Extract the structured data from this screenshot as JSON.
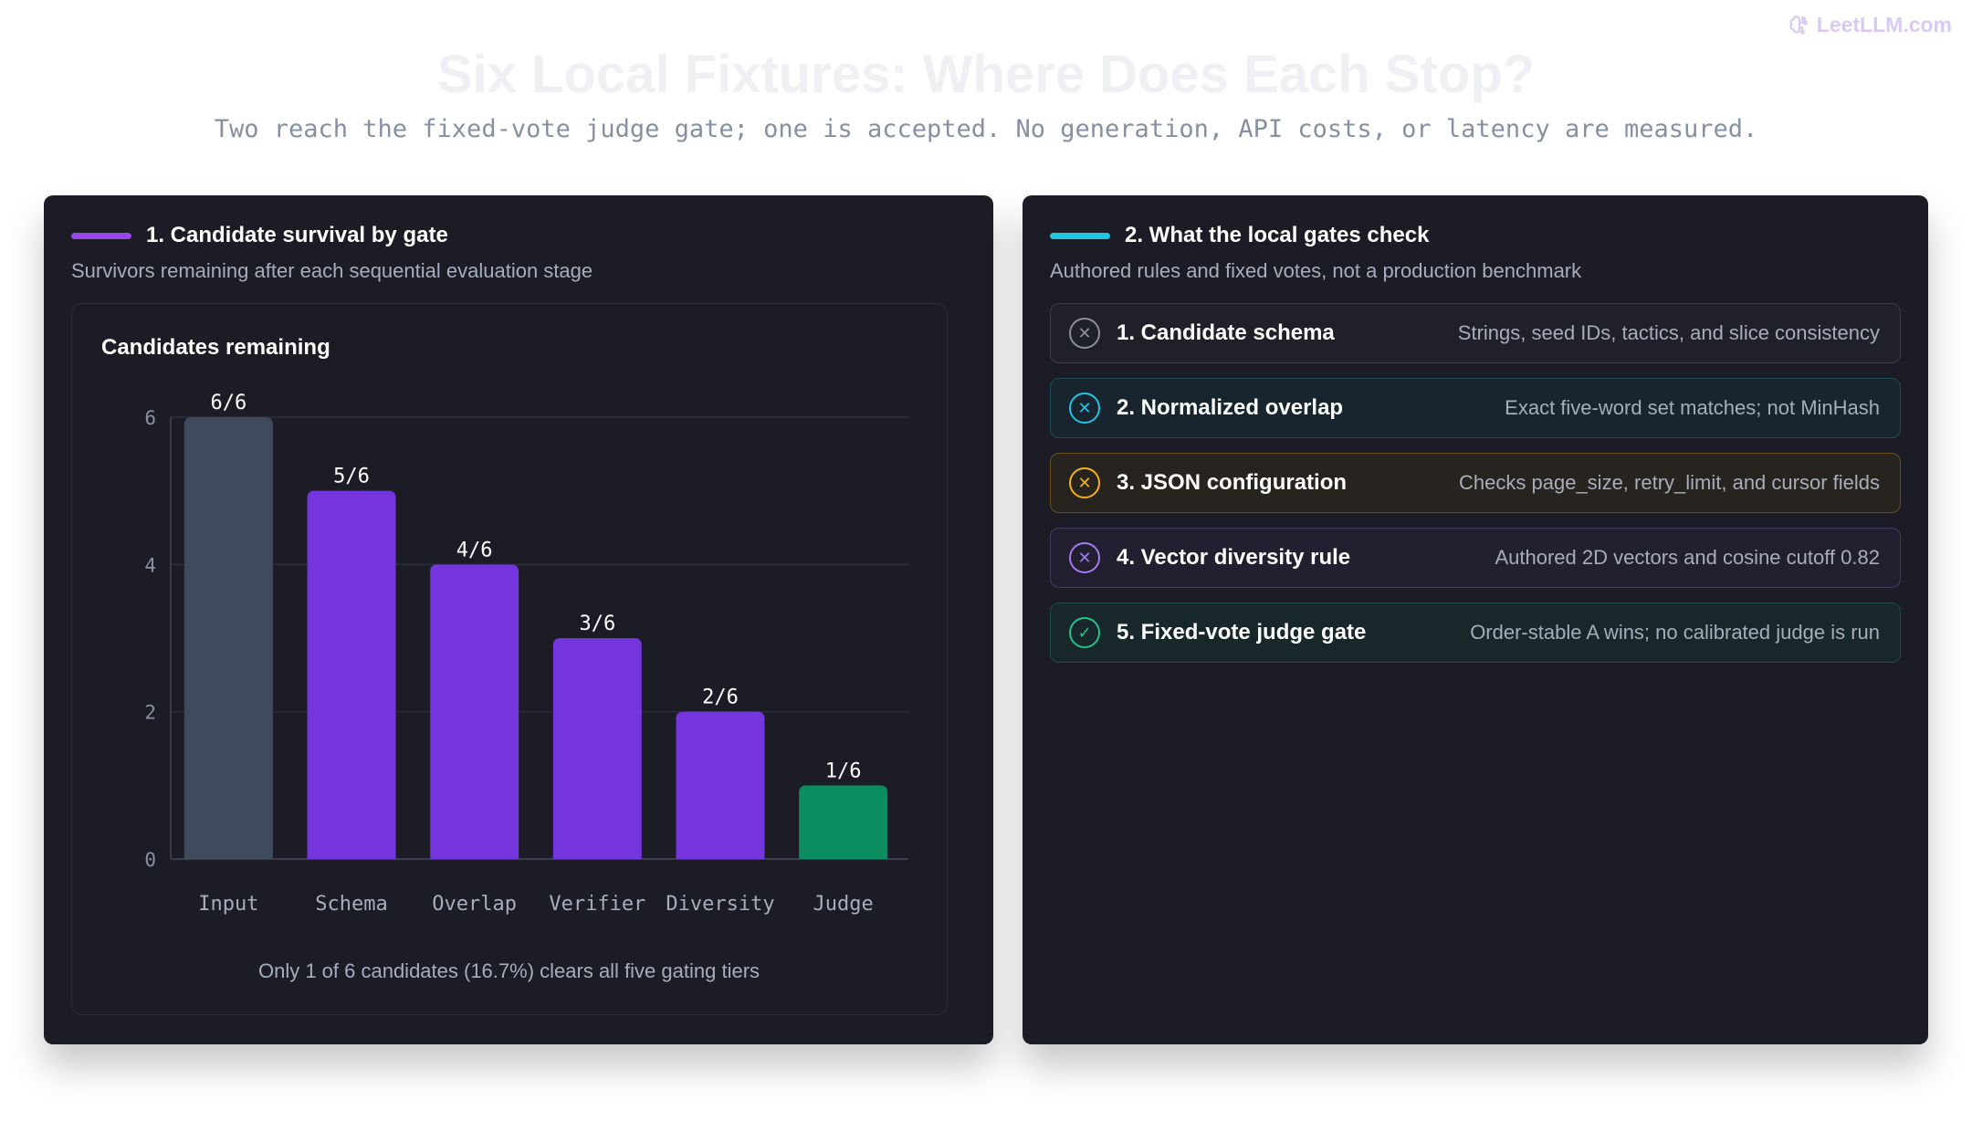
{
  "brand": {
    "name": "LeetLLM.com",
    "icon": "brain-icon"
  },
  "title": "Six Local Fixtures: Where Does Each Stop?",
  "subtitle": "Two reach the fixed-vote judge gate; one is accepted. No generation, API costs, or latency are measured.",
  "panels": {
    "left": {
      "title": "1. Candidate survival by gate",
      "subtitle": "Survivors remaining after each sequential evaluation stage",
      "accent": "#9b46e8",
      "chart_title": "Candidates remaining",
      "caption": "Only 1 of 6 candidates (16.7%) clears all five gating tiers"
    },
    "right": {
      "title": "2. What the local gates check",
      "subtitle": "Authored rules and fixed votes, not a production benchmark",
      "accent": "#1ec8e0",
      "gates": [
        {
          "label": "1. Candidate schema",
          "desc": "Strings, seed IDs, tactics, and slice consistency",
          "icon": "x-circle-icon",
          "glyph": "✕",
          "color": "#8b8f9c",
          "bg": "#1f2029",
          "border": "#3b3d4a"
        },
        {
          "label": "2. Normalized overlap",
          "desc": "Exact five-word set matches; not MinHash",
          "icon": "x-circle-icon",
          "glyph": "✕",
          "color": "#22c3e6",
          "bg": "#18252f",
          "border": "#1d4a57"
        },
        {
          "label": "3. JSON configuration",
          "desc": "Checks page_size, retry_limit, and cursor fields",
          "icon": "x-circle-icon",
          "glyph": "✕",
          "color": "#f2b21b",
          "bg": "#27231f",
          "border": "#6a4e1e"
        },
        {
          "label": "4. Vector diversity rule",
          "desc": "Authored 2D vectors and cosine cutoff 0.82",
          "icon": "x-circle-icon",
          "glyph": "✕",
          "color": "#a57cf0",
          "bg": "#221f30",
          "border": "#433a64"
        },
        {
          "label": "5. Fixed-vote judge gate",
          "desc": "Order-stable A wins; no calibrated judge is run",
          "icon": "check-circle-icon",
          "glyph": "✓",
          "color": "#27c28a",
          "bg": "#18272a",
          "border": "#1f4c42"
        }
      ]
    }
  },
  "chart_data": {
    "type": "bar",
    "title": "Candidates remaining",
    "categories": [
      "Input",
      "Schema",
      "Overlap",
      "Verifier",
      "Diversity",
      "Judge"
    ],
    "values": [
      6,
      5,
      4,
      3,
      2,
      1
    ],
    "data_labels": [
      "6/6",
      "5/6",
      "4/6",
      "3/6",
      "2/6",
      "1/6"
    ],
    "colors": [
      "#3f4a5c",
      "#7435dd",
      "#7435dd",
      "#7435dd",
      "#7435dd",
      "#0b8d5f"
    ],
    "ylim": [
      0,
      6
    ],
    "yticks": [
      0,
      2,
      4,
      6
    ],
    "grid": true,
    "xlabel": "",
    "ylabel": ""
  }
}
